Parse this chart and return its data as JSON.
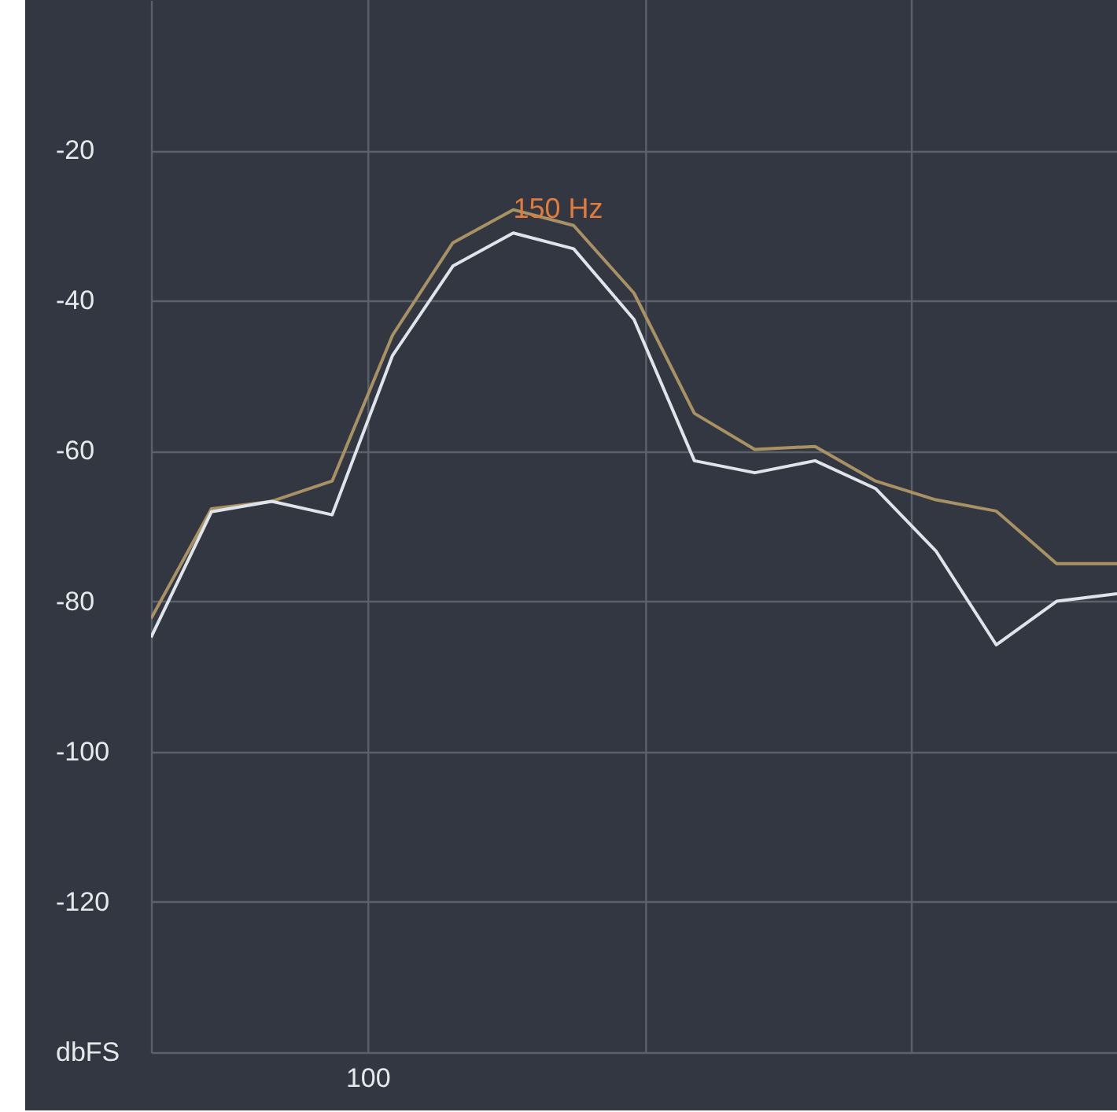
{
  "chart_data": {
    "type": "line",
    "ylim": [
      -140,
      0
    ],
    "yticks": [
      {
        "value": -140,
        "label": "dbFS"
      },
      -120,
      -100,
      -80,
      -60,
      -40,
      -20
    ],
    "grid": "y",
    "marker": "none",
    "line_style": "solid",
    "categories": [
      null,
      null,
      null,
      null,
      null,
      null,
      null,
      null,
      null,
      null,
      null,
      null,
      null,
      null,
      null,
      null,
      null
    ],
    "series": [
      {
        "color": "#a89163",
        "values": [
          -82.3,
          -67.7,
          -66.7,
          -64,
          -44.6,
          -32.3,
          -27.9,
          -30,
          -39,
          -55,
          -59.8,
          -59.4,
          -64,
          -66.5,
          -68,
          -75,
          -75
        ]
      },
      {
        "color": "#dfe4ea",
        "values": [
          -84.8,
          -68.1,
          -66.7,
          -68.5,
          -47.3,
          -35.4,
          -31,
          -33.1,
          -42.5,
          -61.3,
          -62.9,
          -61.3,
          -65,
          -73.3,
          -85.8,
          -80,
          -79
        ]
      }
    ],
    "annotations": [
      "150 Hz",
      "100"
    ]
  }
}
